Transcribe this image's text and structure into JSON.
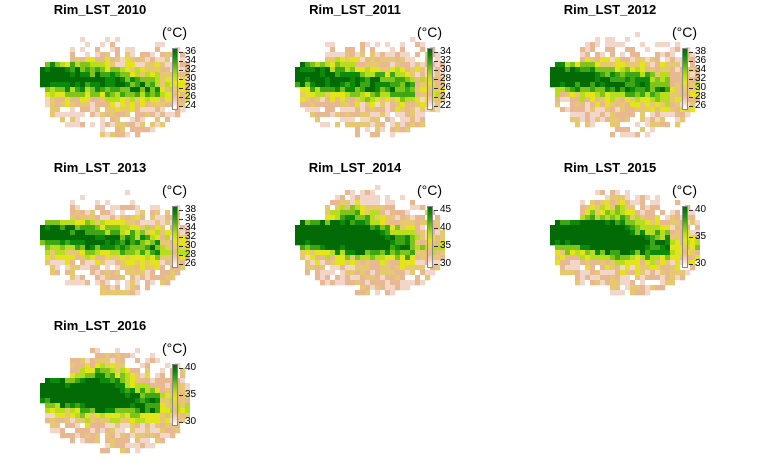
{
  "colors": {
    "ramp": [
      "#ffffff",
      "#f2d6c9",
      "#e8b893",
      "#e6c871",
      "#e4e41a",
      "#b7dd1f",
      "#7fc41a",
      "#3ea613",
      "#0b8a0c",
      "#036b06"
    ]
  },
  "panels": [
    {
      "title": "Rim_LST_2010",
      "unit": "(°C)",
      "ticks": [
        "36",
        "34",
        "32",
        "30",
        "28",
        "26",
        "24"
      ],
      "warmth": 0.55
    },
    {
      "title": "Rim_LST_2011",
      "unit": "(°C)",
      "ticks": [
        "34",
        "32",
        "30",
        "28",
        "26",
        "24",
        "22"
      ],
      "warmth": 0.5
    },
    {
      "title": "Rim_LST_2012",
      "unit": "(°C)",
      "ticks": [
        "38",
        "36",
        "34",
        "32",
        "30",
        "28",
        "26"
      ],
      "warmth": 0.55
    },
    {
      "title": "Rim_LST_2013",
      "unit": "(°C)",
      "ticks": [
        "38",
        "36",
        "34",
        "32",
        "30",
        "28",
        "26"
      ],
      "warmth": 0.5
    },
    {
      "title": "Rim_LST_2014",
      "unit": "(°C)",
      "ticks": [
        "45",
        "40",
        "35",
        "30"
      ],
      "warmth": 0.8
    },
    {
      "title": "Rim_LST_2015",
      "unit": "(°C)",
      "ticks": [
        "40",
        "35",
        "30"
      ],
      "warmth": 0.85
    },
    {
      "title": "Rim_LST_2016",
      "unit": "(°C)",
      "ticks": [
        "40",
        "35",
        "30"
      ],
      "warmth": 0.8
    }
  ]
}
